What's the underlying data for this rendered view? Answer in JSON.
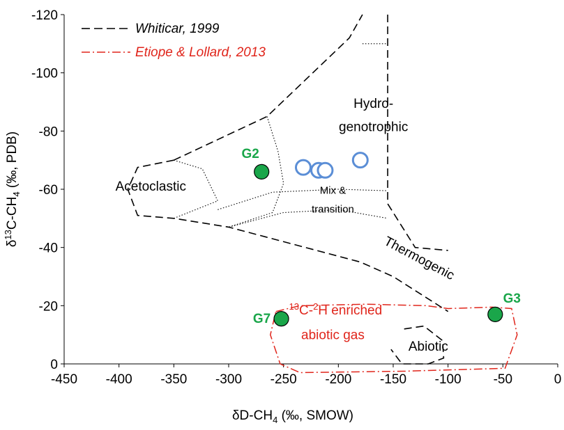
{
  "chart_data": {
    "type": "scatter",
    "title": "",
    "xlabel": "δD-CH₄ (‰, SMOW)",
    "xlabel_parts": {
      "prefix": "δD-CH",
      "subscript": "4",
      "suffix": " (‰, SMOW)"
    },
    "ylabel": "δ13C-CH4 (‰, PDB)",
    "ylabel_parts": {
      "prefix": "δ",
      "superscript": "13",
      "mid": "C-CH",
      "subscript": "4",
      "suffix": " (‰, PDB)"
    },
    "xlim": [
      -450,
      0
    ],
    "ylim": [
      0,
      -120
    ],
    "y_axis_inverted": true,
    "xticks": [
      -450,
      -400,
      -350,
      -300,
      -250,
      -200,
      -150,
      -100,
      -50,
      0
    ],
    "yticks": [
      0,
      -20,
      -40,
      -60,
      -80,
      -100,
      -120
    ],
    "xtick_labels": [
      "-450",
      "-400",
      "-350",
      "-300",
      "-250",
      "-200",
      "-150",
      "-100",
      "-50",
      "0"
    ],
    "ytick_labels": [
      "0",
      "-20",
      "-40",
      "-60",
      "-80",
      "-100",
      "-120"
    ],
    "grid": false,
    "legend": {
      "placement": "top-left",
      "entries": [
        {
          "label": "Whiticar, 1999",
          "style": "dashed",
          "color": "#000000"
        },
        {
          "label": "Etiope & Lollard, 2013",
          "style": "dash-dot",
          "color": "#e0251b"
        }
      ]
    },
    "series": [
      {
        "marker": "open-circle",
        "color": "#5b8ed6",
        "points": [
          {
            "x": -232,
            "y": -67.5
          },
          {
            "x": -218,
            "y": -66.5
          },
          {
            "x": -212,
            "y": -66.5
          },
          {
            "x": -180,
            "y": -70
          }
        ]
      },
      {
        "marker": "filled-circle",
        "color": "#1aa64a",
        "points": [
          {
            "x": -270,
            "y": -66,
            "label": "G2"
          },
          {
            "x": -252,
            "y": -15.5,
            "label": "G7"
          },
          {
            "x": -57,
            "y": -17,
            "label": "G3"
          }
        ]
      }
    ],
    "region_labels": [
      {
        "text": "Hydro-",
        "x": -168,
        "y": -88
      },
      {
        "text": "genotrophic",
        "x": -168,
        "y": -80
      },
      {
        "text": "Acetoclastic",
        "x": -371,
        "y": -59.5
      },
      {
        "text": "Mix &",
        "x": -205,
        "y": -58.5
      },
      {
        "text": "transition",
        "x": -205,
        "y": -52
      },
      {
        "text": "Thermogenic",
        "x": -128,
        "y": -35,
        "rotate": 28
      },
      {
        "text": "abiotic gas",
        "x": -205,
        "y": -8.5,
        "color": "#e0251b"
      },
      {
        "text": "Abiotic",
        "x": -118,
        "y": -4.5
      }
    ],
    "enriched_label": {
      "prefix": "13",
      "mid": "C-",
      "sup2": "2",
      "suffix": "H enriched",
      "x": -245,
      "y": -17,
      "color": "#e0251b"
    },
    "boundaries": {
      "whiticar_dashed": [
        [
          [
            -350,
            -70
          ],
          [
            -265,
            -85
          ],
          [
            -190,
            -112
          ],
          [
            -178,
            -120
          ]
        ],
        [
          [
            -350,
            -70
          ],
          [
            -383,
            -67.5
          ],
          [
            -392,
            -60
          ],
          [
            -383,
            -51
          ],
          [
            -350,
            -50
          ],
          [
            -300,
            -47
          ],
          [
            -180,
            -35
          ],
          [
            -150,
            -30
          ],
          [
            -100,
            -18
          ]
        ],
        [
          [
            -155,
            -120
          ],
          [
            -155,
            -55
          ],
          [
            -130,
            -40
          ],
          [
            -100,
            -39
          ]
        ],
        [
          [
            -140,
            -12
          ],
          [
            -122,
            -13
          ],
          [
            -105,
            -8
          ],
          [
            -104,
            -2
          ],
          [
            -118,
            0
          ],
          [
            -142,
            0
          ],
          [
            -152,
            -5
          ]
        ]
      ],
      "whiticar_dotted": [
        [
          [
            -178,
            -110
          ],
          [
            -155,
            -110
          ]
        ],
        [
          [
            -350,
            -70
          ],
          [
            -324,
            -67
          ],
          [
            -310,
            -56
          ],
          [
            -350,
            -50
          ]
        ],
        [
          [
            -265,
            -85
          ],
          [
            -255,
            -73
          ],
          [
            -250,
            -62
          ],
          [
            -260,
            -52
          ],
          [
            -300,
            -47
          ]
        ],
        [
          [
            -310,
            -53
          ],
          [
            -260,
            -59
          ],
          [
            -200,
            -60
          ],
          [
            -155,
            -59.5
          ]
        ],
        [
          [
            -300,
            -47
          ],
          [
            -250,
            -52
          ],
          [
            -200,
            -53
          ],
          [
            -155,
            -50
          ]
        ]
      ],
      "etiope_dash_dot": [
        [
          [
            -257,
            -18
          ],
          [
            -235,
            -20
          ],
          [
            -175,
            -20.5
          ],
          [
            -120,
            -20
          ],
          [
            -100,
            -19
          ],
          [
            -60,
            -19.5
          ],
          [
            -42,
            -19
          ],
          [
            -37,
            -10
          ],
          [
            -48,
            1.5
          ],
          [
            -140,
            2.5
          ],
          [
            -235,
            3
          ],
          [
            -253,
            0
          ],
          [
            -262,
            -10
          ],
          [
            -257,
            -18
          ]
        ]
      ]
    }
  }
}
